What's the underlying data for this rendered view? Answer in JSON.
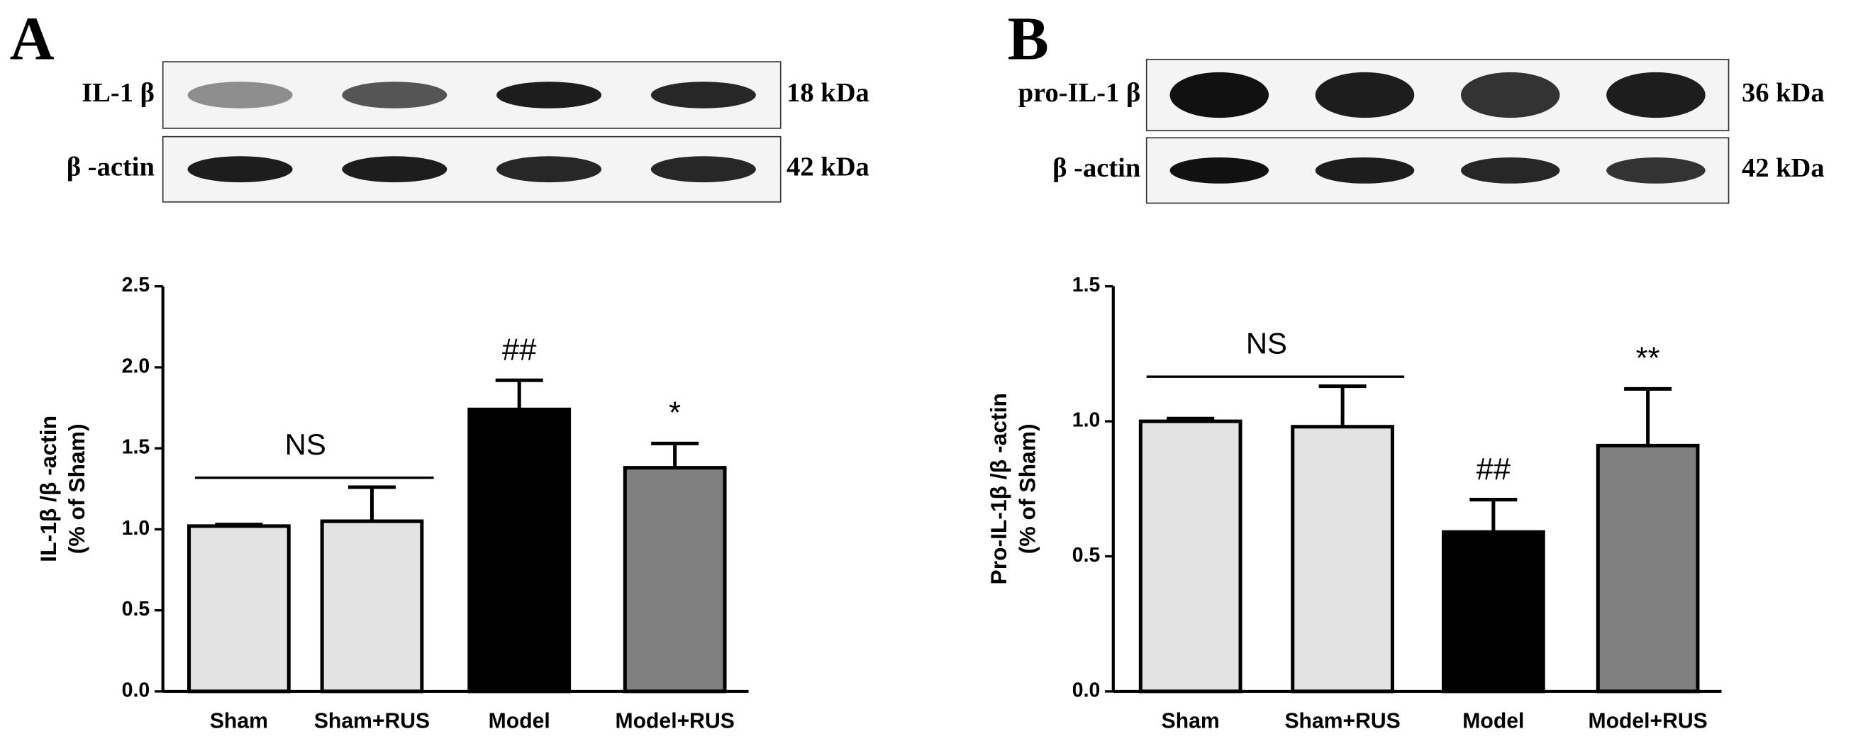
{
  "chart_data": [
    {
      "type": "bar",
      "panel_label": "A",
      "blot": [
        {
          "label": "IL-1 β",
          "size": "18 kDa"
        },
        {
          "label": "β -actin",
          "size": "42 kDa"
        }
      ],
      "ylabel": [
        "IL-1β /β -actin",
        "(% of Sham)"
      ],
      "categories": [
        "Sham",
        "Sham+RUS",
        "Model",
        "Model+RUS"
      ],
      "values": [
        1.02,
        1.05,
        1.74,
        1.38
      ],
      "errors": [
        0.01,
        0.21,
        0.18,
        0.15
      ],
      "colors": [
        "#e3e3e3",
        "#e3e3e3",
        "#000000",
        "#808080"
      ],
      "annotations": [
        null,
        null,
        "##",
        "*"
      ],
      "bracket": "NS",
      "ylim": [
        0,
        2.5
      ],
      "yticks": [
        {
          "value": 0,
          "label": "0.0"
        },
        0.5,
        {
          "value": 1,
          "label": "1.0"
        },
        1.5,
        {
          "value": 2,
          "label": "2.0"
        },
        2.5
      ]
    },
    {
      "type": "bar",
      "panel_label": "B",
      "blot": [
        {
          "label": "pro-IL-1 β",
          "size": "36 kDa"
        },
        {
          "label": "β -actin",
          "size": "42 kDa"
        }
      ],
      "ylabel": [
        "Pro-IL-1β /β -actin",
        "(% of Sham)"
      ],
      "categories": [
        "Sham",
        "Sham+RUS",
        "Model",
        "Model+RUS"
      ],
      "values": [
        1.0,
        0.98,
        0.59,
        0.91
      ],
      "errors": [
        0.01,
        0.15,
        0.12,
        0.21
      ],
      "colors": [
        "#e3e3e3",
        "#e3e3e3",
        "#000000",
        "#808080"
      ],
      "annotations": [
        null,
        null,
        "##",
        "**"
      ],
      "bracket": "NS",
      "ylim": [
        0,
        1.5
      ],
      "yticks": [
        {
          "value": 0,
          "label": "0.0"
        },
        0.5,
        {
          "value": 1,
          "label": "1.0"
        },
        1.5
      ]
    }
  ]
}
